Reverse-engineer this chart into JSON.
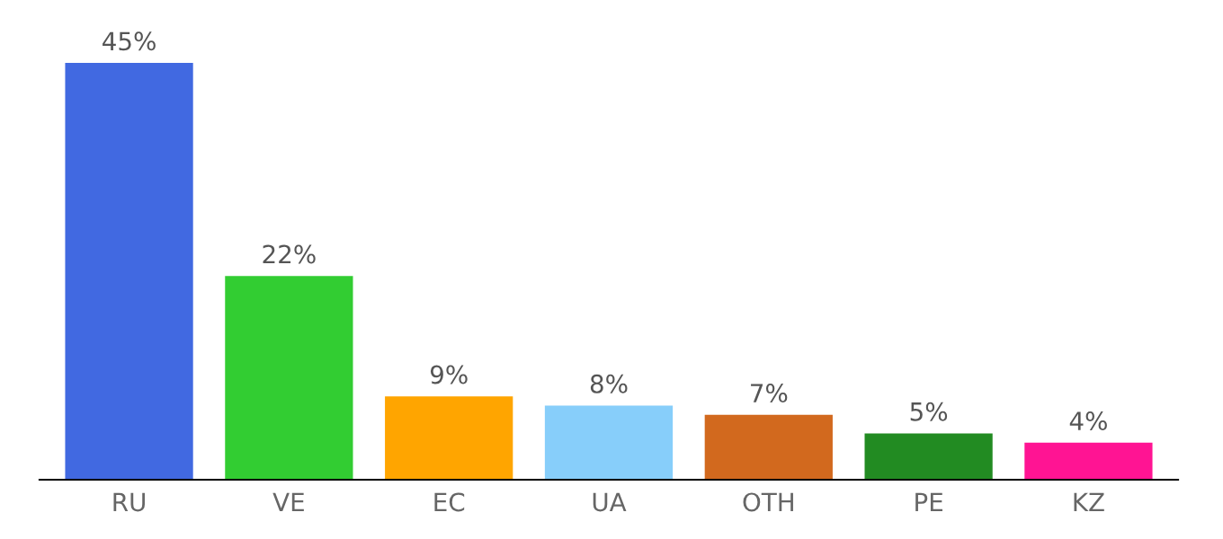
{
  "chart_data": {
    "type": "bar",
    "categories": [
      "RU",
      "VE",
      "EC",
      "UA",
      "OTH",
      "PE",
      "KZ"
    ],
    "values": [
      45,
      22,
      9,
      8,
      7,
      5,
      4
    ],
    "colors": [
      "#4169e1",
      "#32cd32",
      "#ffa500",
      "#87cefa",
      "#d2691e",
      "#228b22",
      "#ff1493"
    ],
    "value_labels": [
      "45%",
      "22%",
      "9%",
      "8%",
      "7%",
      "5%",
      "4%"
    ],
    "grid": false,
    "legend": false
  }
}
